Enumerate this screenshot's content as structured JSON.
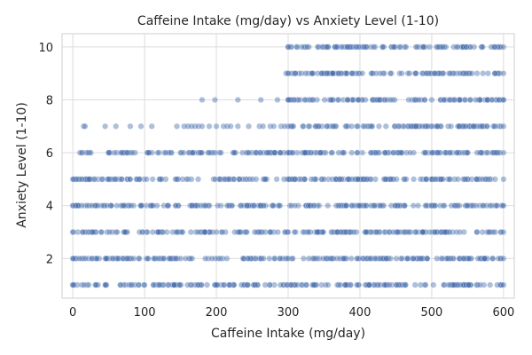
{
  "chart_data": {
    "type": "scatter",
    "title": "Caffeine Intake (mg/day) vs Anxiety Level (1-10)",
    "xlabel": "Caffeine Intake (mg/day)",
    "ylabel": "Anxiety Level (1-10)",
    "xlim": [
      -15,
      615
    ],
    "ylim": [
      0.5,
      10.5
    ],
    "xticks": [
      0,
      100,
      200,
      300,
      400,
      500,
      600
    ],
    "yticks": [
      2,
      4,
      6,
      8,
      10
    ],
    "grid": true,
    "point_color": "#4c72b0",
    "point_alpha": 0.45,
    "levels": [
      {
        "y": 1,
        "ranges": [
          [
            0,
            600
          ]
        ]
      },
      {
        "y": 2,
        "ranges": [
          [
            0,
            600
          ]
        ]
      },
      {
        "y": 3,
        "ranges": [
          [
            0,
            600
          ]
        ]
      },
      {
        "y": 4,
        "ranges": [
          [
            0,
            600
          ]
        ]
      },
      {
        "y": 5,
        "ranges": [
          [
            0,
            600
          ]
        ]
      },
      {
        "y": 6,
        "ranges": [
          [
            10,
            25
          ],
          [
            50,
            600
          ]
        ]
      },
      {
        "y": 7,
        "ranges": [
          [
            300,
            600
          ]
        ]
      },
      {
        "y": 8,
        "ranges": [
          [
            300,
            600
          ]
        ]
      },
      {
        "y": 9,
        "ranges": [
          [
            300,
            600
          ]
        ]
      },
      {
        "y": 10,
        "ranges": [
          [
            300,
            600
          ]
        ]
      }
    ],
    "extra_points": [
      {
        "x": 15,
        "y": 7
      },
      {
        "x": 17,
        "y": 7
      },
      {
        "x": 45,
        "y": 7
      },
      {
        "x": 60,
        "y": 7
      },
      {
        "x": 80,
        "y": 7
      },
      {
        "x": 95,
        "y": 7
      },
      {
        "x": 110,
        "y": 7
      },
      {
        "x": 145,
        "y": 7
      },
      {
        "x": 155,
        "y": 7
      },
      {
        "x": 160,
        "y": 7
      },
      {
        "x": 165,
        "y": 7
      },
      {
        "x": 170,
        "y": 7
      },
      {
        "x": 175,
        "y": 7
      },
      {
        "x": 180,
        "y": 7
      },
      {
        "x": 190,
        "y": 7
      },
      {
        "x": 200,
        "y": 7
      },
      {
        "x": 210,
        "y": 7
      },
      {
        "x": 215,
        "y": 7
      },
      {
        "x": 220,
        "y": 7
      },
      {
        "x": 230,
        "y": 7
      },
      {
        "x": 245,
        "y": 7
      },
      {
        "x": 260,
        "y": 7
      },
      {
        "x": 265,
        "y": 7
      },
      {
        "x": 275,
        "y": 7
      },
      {
        "x": 280,
        "y": 7
      },
      {
        "x": 290,
        "y": 7
      },
      {
        "x": 295,
        "y": 7
      },
      {
        "x": 180,
        "y": 8
      },
      {
        "x": 198,
        "y": 8
      },
      {
        "x": 230,
        "y": 8
      },
      {
        "x": 262,
        "y": 8
      },
      {
        "x": 285,
        "y": 8
      },
      {
        "x": 297,
        "y": 9
      },
      {
        "x": 300,
        "y": 9
      }
    ]
  }
}
